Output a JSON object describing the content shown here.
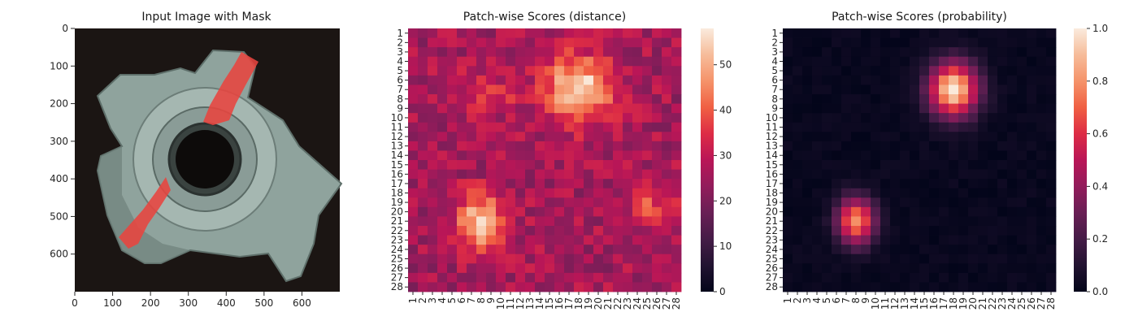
{
  "chart_data": [
    {
      "type": "image",
      "title": "Input Image with Mask",
      "xlim": [
        0,
        700
      ],
      "ylim": [
        700,
        0
      ],
      "x_ticks": [
        0,
        100,
        200,
        300,
        400,
        500,
        600
      ],
      "y_ticks": [
        0,
        100,
        200,
        300,
        400,
        500,
        600
      ],
      "grid": false
    },
    {
      "type": "heatmap",
      "title": "Patch-wise Scores (distance)",
      "rows": 28,
      "cols": 28,
      "tick_labels": [
        "1",
        "2",
        "3",
        "4",
        "5",
        "6",
        "7",
        "8",
        "9",
        "10",
        "11",
        "12",
        "13",
        "14",
        "15",
        "16",
        "17",
        "18",
        "19",
        "20",
        "21",
        "22",
        "23",
        "24",
        "25",
        "26",
        "27",
        "28"
      ],
      "colorbar": {
        "min": 0,
        "max": 58,
        "ticks": [
          0,
          10,
          20,
          30,
          40,
          50
        ]
      },
      "background_level": 26,
      "hotspots": [
        {
          "row": 7,
          "col": 18,
          "rx": 3.6,
          "ry": 3.6,
          "value": 57
        },
        {
          "row": 21,
          "col": 8,
          "rx": 2.6,
          "ry": 3.0,
          "value": 53
        },
        {
          "row": 7.5,
          "col": 8.5,
          "rx": 4.5,
          "ry": 2.5,
          "value": 34
        },
        {
          "row": 19.5,
          "col": 25.5,
          "rx": 2.5,
          "ry": 2.0,
          "value": 38
        }
      ]
    },
    {
      "type": "heatmap",
      "title": "Patch-wise Scores (probability)",
      "rows": 28,
      "cols": 28,
      "tick_labels": [
        "1",
        "2",
        "3",
        "4",
        "5",
        "6",
        "7",
        "8",
        "9",
        "10",
        "11",
        "12",
        "13",
        "14",
        "15",
        "16",
        "17",
        "18",
        "19",
        "20",
        "21",
        "22",
        "23",
        "24",
        "25",
        "26",
        "27",
        "28"
      ],
      "colorbar": {
        "min": 0.0,
        "max": 1.0,
        "ticks": [
          "0.0",
          "0.2",
          "0.4",
          "0.6",
          "0.8",
          "1.0"
        ]
      },
      "background_level": 0.02,
      "hotspots": [
        {
          "row": 7,
          "col": 18,
          "rx": 2.6,
          "ry": 3.0,
          "value": 1.0
        },
        {
          "row": 21,
          "col": 8,
          "rx": 2.0,
          "ry": 2.6,
          "value": 0.8
        }
      ]
    }
  ]
}
